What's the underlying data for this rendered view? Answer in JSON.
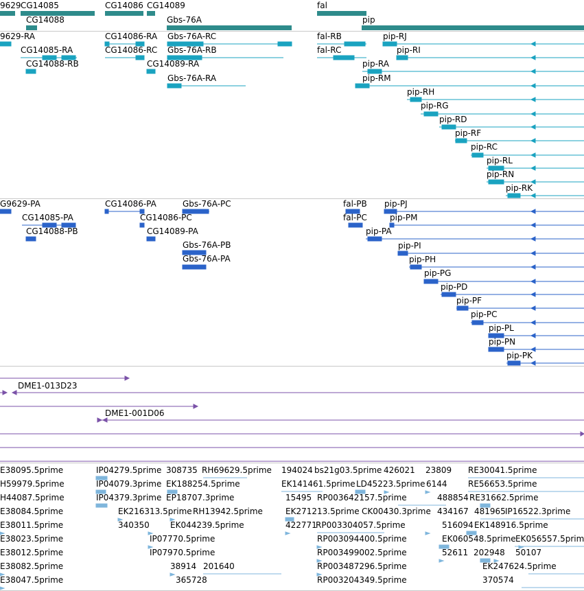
{
  "colors": {
    "gene": "#2e8b8b",
    "transcript": "#1aa3c0",
    "cds": "#2b63c9",
    "clone": "#7b52a8",
    "est": "#7fb6dc",
    "divider": "#c8c8c8"
  },
  "tracks": {
    "genes": {
      "labels": [
        "9629",
        "CG14085",
        "CG14088",
        "CG14086",
        "CG14089",
        "Gbs-76A",
        "fal",
        "pip"
      ]
    },
    "transcripts": {
      "labels": [
        "9629-RA",
        "CG14085-RA",
        "CG14088-RB",
        "CG14086-RA",
        "CG14086-RC",
        "CG14089-RA",
        "Gbs-76A-RC",
        "Gbs-76A-RB",
        "Gbs-76A-RA",
        "fal-RB",
        "fal-RC",
        "pip-RJ",
        "pip-RI",
        "pip-RA",
        "pip-RM",
        "pip-RH",
        "pip-RG",
        "pip-RD",
        "pip-RF",
        "pip-RC",
        "pip-RL",
        "pip-RN",
        "pip-RK"
      ]
    },
    "proteins": {
      "labels": [
        "G9629-PA",
        "CG14085-PA",
        "CG14088-PB",
        "CG14086-PA",
        "CG14086-PC",
        "CG14089-PA",
        "Gbs-76A-PC",
        "Gbs-76A-PB",
        "Gbs-76A-PA",
        "fal-PB",
        "fal-PC",
        "pip-PJ",
        "pip-PM",
        "pip-PA",
        "pip-PI",
        "pip-PH",
        "pip-PG",
        "pip-PD",
        "pip-PF",
        "pip-PC",
        "pip-PL",
        "pip-PN",
        "pip-PK"
      ]
    },
    "clones": {
      "labels": [
        "DME1-013D23",
        "DME1-001D06"
      ]
    },
    "ests": {
      "labels": [
        "E38095.5prime",
        "IP04279.5prime",
        "308735",
        "RH69629.5prime",
        "194024",
        "bs21g03.5prime",
        "426021",
        "23809",
        "RE30041.5prime",
        "H59979.5prime",
        "IP04079.3prime",
        "EK188254.5prime",
        "EK141461.5prime",
        "LD45223.5prime",
        "6144",
        "RE56653.5prime",
        "H44087.5prime",
        "IP04379.3prime",
        "EP18707.3prime",
        "15495",
        "RP003642157.5prime",
        "488854",
        "RE31662.5prime",
        "E38084.5prime",
        "EK216313.5prime",
        "RH13942.5prime",
        "EK271213.5prime",
        "CK00430.3prime",
        "434167",
        "481965",
        "IP16522.3prime",
        "E38011.5prime",
        "340350",
        "EK044239.5prime",
        "422771",
        "RP003304057.5prime",
        "516094",
        "EK148916.5prime",
        "E38023.5prime",
        "IP07770.5prime",
        "RP003094400.5prime",
        "EK060548.5prime",
        "EK056557.5prime",
        "E38012.5prime",
        "IP07970.5prime",
        "RP003499002.5prime",
        "52611",
        "202948",
        "50107",
        "E38082.5prime",
        "38914",
        "201640",
        "RP003487296.5prime",
        "EK247624.5prime",
        "E38047.5prime",
        "365728",
        "RP003204349.5prime",
        "370574"
      ]
    }
  }
}
